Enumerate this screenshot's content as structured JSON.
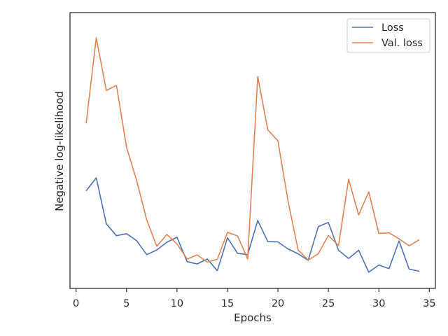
{
  "chart_data": {
    "type": "line",
    "xlabel": "Epochs",
    "ylabel": "Negative log-likelihood",
    "xlim": [
      -0.6,
      35.6
    ],
    "ylim": [
      0.0,
      1.0
    ],
    "x_ticks": [
      0,
      5,
      10,
      15,
      20,
      25,
      30,
      35
    ],
    "y_ticks_shown": false,
    "grid": false,
    "legend_position": "top-right",
    "x": [
      1,
      2,
      3,
      4,
      5,
      6,
      7,
      8,
      9,
      10,
      11,
      12,
      13,
      14,
      15,
      16,
      17,
      18,
      19,
      20,
      21,
      22,
      23,
      24,
      25,
      26,
      27,
      28,
      29,
      30,
      31,
      32,
      33,
      34
    ],
    "series": [
      {
        "name": "Loss",
        "color": "#4c72b0",
        "values": [
          0.355,
          0.405,
          0.228,
          0.182,
          0.19,
          0.163,
          0.109,
          0.127,
          0.157,
          0.176,
          0.082,
          0.073,
          0.092,
          0.047,
          0.174,
          0.114,
          0.109,
          0.241,
          0.159,
          0.158,
          0.131,
          0.112,
          0.087,
          0.217,
          0.233,
          0.126,
          0.094,
          0.126,
          0.041,
          0.069,
          0.055,
          0.162,
          0.053,
          0.045
        ]
      },
      {
        "name": "Val. loss",
        "color": "#dd8452",
        "values": [
          0.615,
          0.945,
          0.742,
          0.762,
          0.523,
          0.395,
          0.243,
          0.141,
          0.187,
          0.15,
          0.092,
          0.108,
          0.08,
          0.091,
          0.195,
          0.181,
          0.092,
          0.796,
          0.59,
          0.548,
          0.315,
          0.127,
          0.088,
          0.112,
          0.183,
          0.144,
          0.4,
          0.262,
          0.351,
          0.191,
          0.193,
          0.17,
          0.143,
          0.166
        ]
      }
    ]
  }
}
